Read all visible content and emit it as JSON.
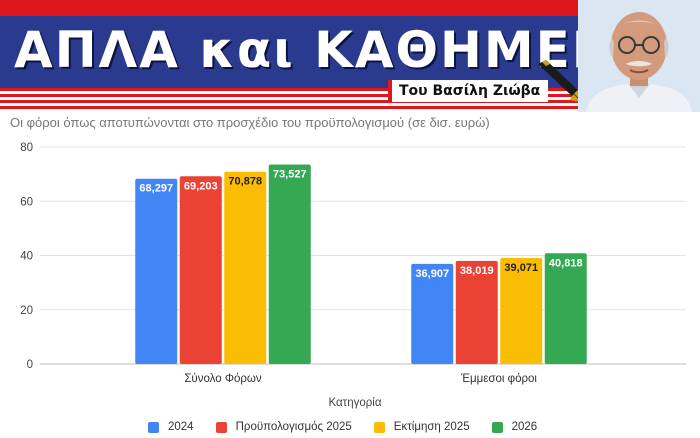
{
  "banner": {
    "title": "ΑΠΛΑ και ΚΑΘΗΜΕΡΙΝΑ",
    "byline": "Του Βασίλη Ζιώβα"
  },
  "colors": {
    "banner_red": "#e0161f",
    "banner_navy": "#2a3a8f",
    "series": [
      "#4285f4",
      "#ea4335",
      "#fbbc04",
      "#34a853"
    ]
  },
  "chart_data": {
    "type": "bar",
    "subtitle": "Οι φόροι όπως αποτυπώνονται στο προσχέδιο του προϋπολογισμού (σε δισ. ευρώ)",
    "xlabel": "Κατηγορία",
    "ylabel": "",
    "ylim": [
      0,
      80
    ],
    "yticks": [
      0,
      20,
      40,
      60,
      80
    ],
    "grid": true,
    "legend_position": "bottom",
    "categories": [
      "Σύνολο Φόρων",
      "Έμμεσοι φόροι"
    ],
    "series": [
      {
        "name": "2024",
        "values": [
          68.297,
          36.907
        ],
        "labels": [
          "68,297",
          "36,907"
        ]
      },
      {
        "name": "Προϋπολογισμός 2025",
        "values": [
          69.203,
          38.019
        ],
        "labels": [
          "69,203",
          "38,019"
        ]
      },
      {
        "name": "Εκτίμηση 2025",
        "values": [
          70.878,
          39.071
        ],
        "labels": [
          "70,878",
          "39,071"
        ]
      },
      {
        "name": "2026",
        "values": [
          73.527,
          40.818
        ],
        "labels": [
          "73,527",
          "40,818"
        ]
      }
    ]
  }
}
